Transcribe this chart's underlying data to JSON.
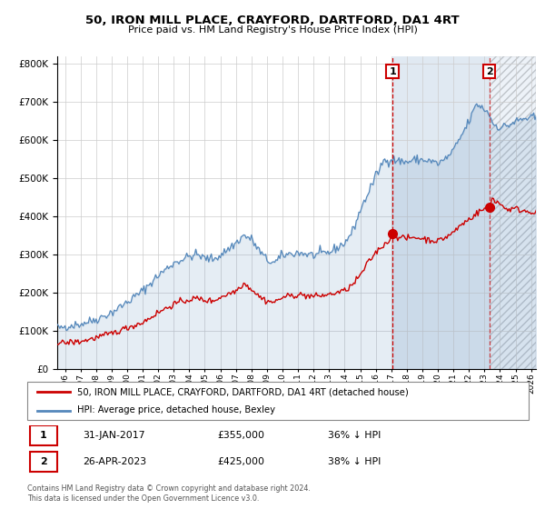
{
  "title": "50, IRON MILL PLACE, CRAYFORD, DARTFORD, DA1 4RT",
  "subtitle": "Price paid vs. HM Land Registry's House Price Index (HPI)",
  "legend_line1": "50, IRON MILL PLACE, CRAYFORD, DARTFORD, DA1 4RT (detached house)",
  "legend_line2": "HPI: Average price, detached house, Bexley",
  "annotation1_label": "1",
  "annotation1_date": "31-JAN-2017",
  "annotation1_price": "£355,000",
  "annotation1_hpi": "36% ↓ HPI",
  "annotation2_label": "2",
  "annotation2_date": "26-APR-2023",
  "annotation2_price": "£425,000",
  "annotation2_hpi": "38% ↓ HPI",
  "footer": "Contains HM Land Registry data © Crown copyright and database right 2024.\nThis data is licensed under the Open Government Licence v3.0.",
  "hpi_color": "#5588bb",
  "hpi_fill_color": "#ddeeff",
  "price_color": "#cc0000",
  "marker_color": "#cc0000",
  "vline_color": "#cc0000",
  "annotation_box_color": "#cc0000",
  "grid_color": "#cccccc",
  "bg_color": "#ffffff",
  "plot_bg_color": "#ffffff",
  "ylim": [
    0,
    820000
  ],
  "yticks": [
    0,
    100000,
    200000,
    300000,
    400000,
    500000,
    600000,
    700000,
    800000
  ],
  "xlim_start": 1995.5,
  "xlim_end": 2026.3,
  "sale1_x": 2017.08,
  "sale1_y": 355000,
  "sale2_x": 2023.32,
  "sale2_y": 425000,
  "shade_start": 2017.08,
  "shade_end": 2023.32,
  "hatch_start": 2023.32,
  "hatch_end": 2026.3
}
